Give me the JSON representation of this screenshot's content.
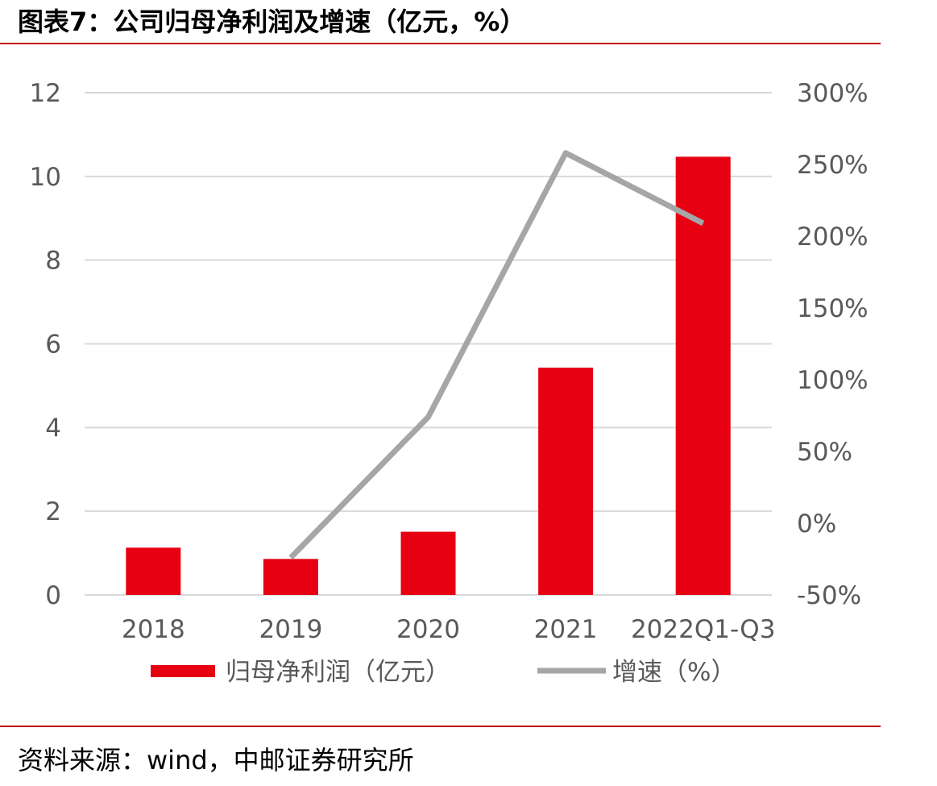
{
  "title": "图表7：公司归母净利润及增速（亿元，%）",
  "source": "资料来源：wind，中邮证券研究所",
  "colors": {
    "rule": "#c00000",
    "bar": "#e60012",
    "line": "#a6a6a6",
    "grid": "#d9d9d9",
    "text": "#595959"
  },
  "chart_data": {
    "type": "bar",
    "categories": [
      "2018",
      "2019",
      "2020",
      "2021",
      "2022Q1-Q3"
    ],
    "series": [
      {
        "name": "归母净利润（亿元）",
        "type": "bar",
        "axis": "left",
        "values": [
          1.13,
          0.86,
          1.51,
          5.43,
          10.47
        ]
      },
      {
        "name": "增速（%）",
        "type": "line",
        "axis": "right",
        "values": [
          null,
          -24,
          74,
          258,
          209
        ]
      }
    ],
    "y_left": {
      "ylim": [
        0,
        12
      ],
      "ticks": [
        "0",
        "2",
        "4",
        "6",
        "8",
        "10",
        "12"
      ]
    },
    "y_right": {
      "ylim": [
        -50,
        300
      ],
      "ticks": [
        "-50%",
        "0%",
        "50%",
        "100%",
        "150%",
        "200%",
        "250%",
        "300%"
      ]
    },
    "grid": true,
    "legend": "bottom"
  }
}
